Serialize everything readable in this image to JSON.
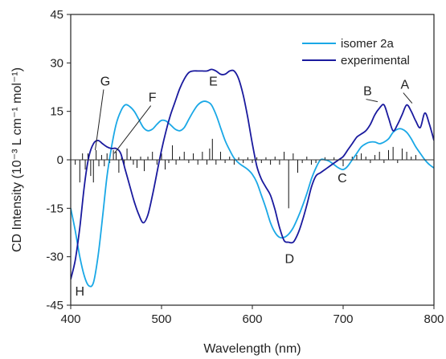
{
  "chart_data": {
    "type": "line",
    "title": "",
    "xlabel": "Wavelength (nm)",
    "ylabel": "CD Intensity (10⁻³ L cm⁻¹ mol⁻¹)",
    "xlim": [
      400,
      800
    ],
    "ylim": [
      -45,
      45
    ],
    "xticks": [
      400,
      500,
      600,
      700,
      800
    ],
    "yticks": [
      -45,
      -30,
      -15,
      0,
      15,
      30,
      45
    ],
    "grid": false,
    "legend_position": "top-right",
    "series": [
      {
        "name": "isomer 2a",
        "color": "#1aa8e6",
        "x": [
          400,
          405,
          410,
          415,
          420,
          425,
          430,
          435,
          440,
          445,
          450,
          455,
          460,
          465,
          470,
          475,
          480,
          485,
          490,
          495,
          500,
          505,
          510,
          515,
          520,
          525,
          530,
          535,
          540,
          545,
          550,
          555,
          560,
          565,
          570,
          575,
          580,
          585,
          590,
          595,
          600,
          605,
          610,
          615,
          620,
          625,
          630,
          635,
          640,
          645,
          650,
          655,
          660,
          665,
          670,
          675,
          680,
          685,
          690,
          695,
          700,
          705,
          710,
          715,
          720,
          725,
          730,
          735,
          740,
          745,
          750,
          755,
          760,
          765,
          770,
          775,
          780,
          785,
          790,
          795,
          800
        ],
        "y": [
          -15,
          -22,
          -30,
          -36,
          -39,
          -38,
          -30,
          -18,
          -5,
          4,
          11,
          15,
          17,
          16.5,
          15,
          12.5,
          10,
          9,
          9.5,
          11,
          12.2,
          12,
          10.8,
          9.5,
          9,
          10,
          12.5,
          15,
          17,
          18,
          18,
          17,
          14,
          10,
          6,
          3,
          0.5,
          -1,
          -2,
          -3,
          -4.5,
          -7,
          -11,
          -15,
          -19.5,
          -22.5,
          -24,
          -24,
          -23,
          -21,
          -18,
          -14.5,
          -10.5,
          -6,
          -2.5,
          0,
          0,
          -0.5,
          -1.5,
          -2.5,
          -3,
          -2,
          0,
          2,
          4,
          5,
          5.5,
          5.5,
          5,
          5.5,
          6.5,
          8.5,
          9.5,
          9.5,
          8.5,
          6.5,
          4,
          2,
          0,
          -1.5,
          -2.5
        ]
      },
      {
        "name": "experimental",
        "color": "#1a1a9e",
        "x": [
          400,
          405,
          410,
          415,
          420,
          425,
          430,
          435,
          440,
          445,
          450,
          455,
          460,
          465,
          470,
          475,
          480,
          485,
          490,
          495,
          500,
          505,
          510,
          515,
          520,
          525,
          530,
          535,
          540,
          545,
          550,
          555,
          560,
          565,
          570,
          575,
          580,
          585,
          590,
          595,
          600,
          605,
          610,
          615,
          620,
          625,
          630,
          635,
          640,
          645,
          650,
          655,
          660,
          665,
          670,
          675,
          680,
          685,
          690,
          695,
          700,
          705,
          710,
          715,
          720,
          725,
          730,
          735,
          740,
          745,
          750,
          755,
          760,
          765,
          770,
          775,
          780,
          785,
          790,
          795,
          800
        ],
        "y": [
          -37,
          -31,
          -21,
          -8,
          1,
          5,
          6,
          5,
          4,
          3.5,
          3.5,
          2,
          -3,
          -8,
          -13,
          -17,
          -19.5,
          -17,
          -11,
          -4,
          3,
          9,
          14,
          18,
          22,
          25,
          27,
          27.5,
          27.5,
          27.5,
          27.5,
          28,
          27.5,
          26.5,
          26.5,
          27.5,
          27.5,
          25,
          20,
          13,
          5,
          -2,
          -6,
          -8.5,
          -11,
          -15.5,
          -21,
          -25,
          -25.5,
          -25.5,
          -23,
          -19,
          -14,
          -8.5,
          -5,
          -4,
          -3,
          -2,
          -1,
          0,
          1,
          3,
          5,
          7,
          8,
          9,
          11,
          14,
          16,
          17,
          13,
          9,
          11,
          14,
          17,
          15,
          12,
          10,
          14.5,
          11,
          6
        ]
      }
    ],
    "stick_spectrum": {
      "color": "#111111",
      "x": [
        405,
        410,
        413,
        416,
        419,
        422,
        425,
        428,
        431,
        434,
        437,
        440,
        443,
        447,
        450,
        453,
        456,
        459,
        462,
        466,
        469,
        473,
        477,
        481,
        485,
        490,
        495,
        500,
        504,
        508,
        512,
        516,
        520,
        525,
        530,
        535,
        540,
        545,
        550,
        553,
        556,
        560,
        565,
        570,
        575,
        580,
        585,
        590,
        595,
        600,
        605,
        610,
        615,
        620,
        625,
        630,
        635,
        640,
        645,
        650,
        655,
        660,
        665,
        670,
        680,
        690,
        700,
        710,
        715,
        720,
        725,
        730,
        735,
        740,
        745,
        750,
        755,
        760,
        765,
        770,
        775,
        780
      ],
      "y": [
        -1.5,
        -7,
        2,
        -3,
        2,
        -5,
        -7,
        3,
        -2,
        1.5,
        -2,
        2,
        -1,
        3,
        2.5,
        -4,
        1.5,
        -2,
        3.5,
        1,
        -1.5,
        -2.5,
        1,
        -3.5,
        1,
        2.5,
        -1.5,
        2,
        -3,
        -1,
        4.5,
        -1.5,
        1,
        2.5,
        -1,
        2,
        -1.5,
        2.5,
        -1.5,
        3.5,
        6.5,
        -1.5,
        2.5,
        -1,
        1,
        -1.5,
        0.8,
        -1,
        0.8,
        -1,
        0.8,
        -1,
        0.8,
        -1.5,
        1,
        -1.5,
        2.5,
        -15,
        2,
        -4,
        -1,
        1,
        -1.5,
        -1,
        0.8,
        0.8,
        -2,
        1,
        1.5,
        2,
        1,
        -1,
        1.5,
        2.5,
        -1,
        3,
        4,
        -1,
        3.5,
        2.5,
        1,
        1.5
      ]
    },
    "annotations": [
      {
        "label": "G",
        "x": 438,
        "y": 23,
        "target_x": 427,
        "target_y": 3
      },
      {
        "label": "F",
        "x": 490,
        "y": 18,
        "target_x": 448,
        "target_y": 2
      },
      {
        "label": "E",
        "x": 557,
        "y": 23
      },
      {
        "label": "D",
        "x": 641,
        "y": -32
      },
      {
        "label": "C",
        "x": 699,
        "y": -7
      },
      {
        "label": "B",
        "x": 727,
        "y": 20,
        "target_x": 738,
        "target_y": 18
      },
      {
        "label": "A",
        "x": 768,
        "y": 22,
        "target_x": 776,
        "target_y": 17.5
      },
      {
        "label": "H",
        "x": 410,
        "y": -42
      }
    ]
  }
}
